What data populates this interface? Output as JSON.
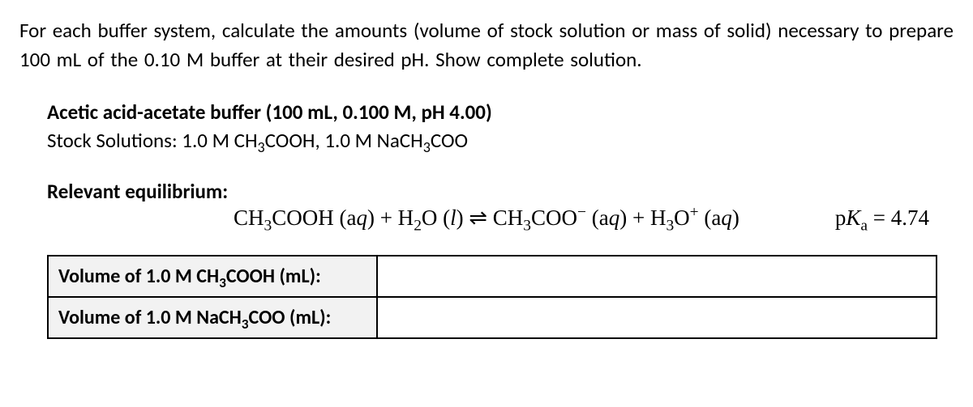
{
  "intro": "For each buffer system, calculate the amounts (volume of stock solution or mass of solid) necessary to prepare 100 mL of the 0.10 M buffer at their desired pH. Show complete solution.",
  "buffer": {
    "title": "Acetic acid-acetate buffer (100 mL, 0.100 M, pH 4.00)",
    "stock_prefix": "Stock Solutions: ",
    "stock_html": "1.0 M CH<sub>3</sub>COOH, 1.0 M NaCH<sub>3</sub>COO"
  },
  "equilibrium": {
    "label": "Relevant equilibrium:",
    "equation_html": "CH<sub>3</sub>COOH (a<i>q</i>) + H<sub>2</sub>O (<i>l</i>) ⇌ CH<sub>3</sub>COO<sup>−</sup> (a<i>q</i>) + H<sub>3</sub>O<sup>+</sup> (a<i>q</i>)",
    "pka_html": "p<i>K</i><sub>a</sub> = 4.74"
  },
  "table": {
    "rows": [
      {
        "label_html": "Volume of 1.0 M CH<sub>3</sub>COOH (mL):",
        "value": ""
      },
      {
        "label_html": "Volume of 1.0 M NaCH<sub>3</sub>COO (mL):",
        "value": ""
      }
    ]
  },
  "style": {
    "body_font": "Calibri, Arial, sans-serif",
    "serif_font": "\"Times New Roman\", Times, serif",
    "text_color": "#000000",
    "bg_color": "#ffffff",
    "label_bg": "#f2f2f2",
    "border_color": "#000000",
    "intro_fontsize": 25,
    "title_fontsize": 25,
    "equation_fontsize": 27,
    "table_fontsize": 24,
    "border_width": 2.5,
    "label_col_width": 380
  }
}
